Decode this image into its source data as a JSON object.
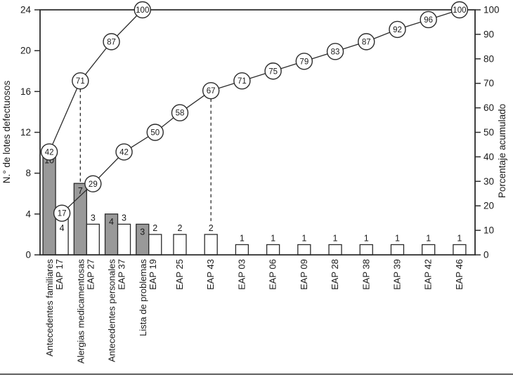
{
  "chart_data": {
    "type": "bar",
    "subtype": "pareto-with-cumulative-lines",
    "title": "",
    "left_axis": {
      "label": "N.° de lotes defectuosos",
      "min": 0,
      "max": 24,
      "ticks": [
        0,
        4,
        8,
        12,
        16,
        20,
        24
      ]
    },
    "right_axis": {
      "label": "Porcentaje acumulado",
      "min": 0,
      "max": 100,
      "ticks": [
        0,
        10,
        20,
        30,
        40,
        50,
        60,
        70,
        80,
        90,
        100
      ]
    },
    "categories": [
      {
        "label": "Antecedentes familiares",
        "code": "EAP 17"
      },
      {
        "label": "Alergias medicamentosas",
        "code": "EAP 27"
      },
      {
        "label": "Antecedentes personales",
        "code": "EAP 37"
      },
      {
        "label": "Lista de problemas",
        "code": "EAP 19"
      },
      {
        "code": "EAP 25"
      },
      {
        "code": "EAP 43"
      },
      {
        "code": "EAP 03"
      },
      {
        "code": "EAP 06"
      },
      {
        "code": "EAP 09"
      },
      {
        "code": "EAP 28"
      },
      {
        "code": "EAP 38"
      },
      {
        "code": "EAP 39"
      },
      {
        "code": "EAP 42"
      },
      {
        "code": "EAP 46"
      }
    ],
    "series": [
      {
        "name": "Lotes defectuosos (barras grises)",
        "type": "bar",
        "color": "#999999",
        "values": [
          10,
          7,
          4,
          3,
          null,
          null,
          null,
          null,
          null,
          null,
          null,
          null,
          null,
          null
        ]
      },
      {
        "name": "Lotes defectuosos (barras blancas)",
        "type": "bar",
        "color": "#ffffff",
        "values": [
          4,
          3,
          3,
          2,
          2,
          2,
          1,
          1,
          1,
          1,
          1,
          1,
          1,
          1
        ]
      },
      {
        "name": "Porcentaje acumulado (serie gris)",
        "type": "line",
        "marker": "circle",
        "values": [
          42,
          71,
          87,
          100,
          null,
          null,
          null,
          null,
          null,
          null,
          null,
          null,
          null,
          null
        ]
      },
      {
        "name": "Porcentaje acumulado (serie blanca)",
        "type": "line",
        "marker": "circle",
        "values": [
          17,
          29,
          42,
          50,
          58,
          67,
          71,
          75,
          79,
          83,
          87,
          92,
          96,
          100
        ]
      }
    ],
    "guides": [
      {
        "category_index": 1,
        "series": "gray",
        "pct": 71
      },
      {
        "category_index": 5,
        "series": "white",
        "pct": 67
      }
    ],
    "layout_hints": {
      "grid": false,
      "legend": false,
      "x_labels_rotated": true,
      "bottom_rule": true
    },
    "colors": {
      "bar_gray": "#999999",
      "bar_white": "#ffffff",
      "stroke": "#2b2b2b",
      "text": "#1a1a1a"
    }
  }
}
